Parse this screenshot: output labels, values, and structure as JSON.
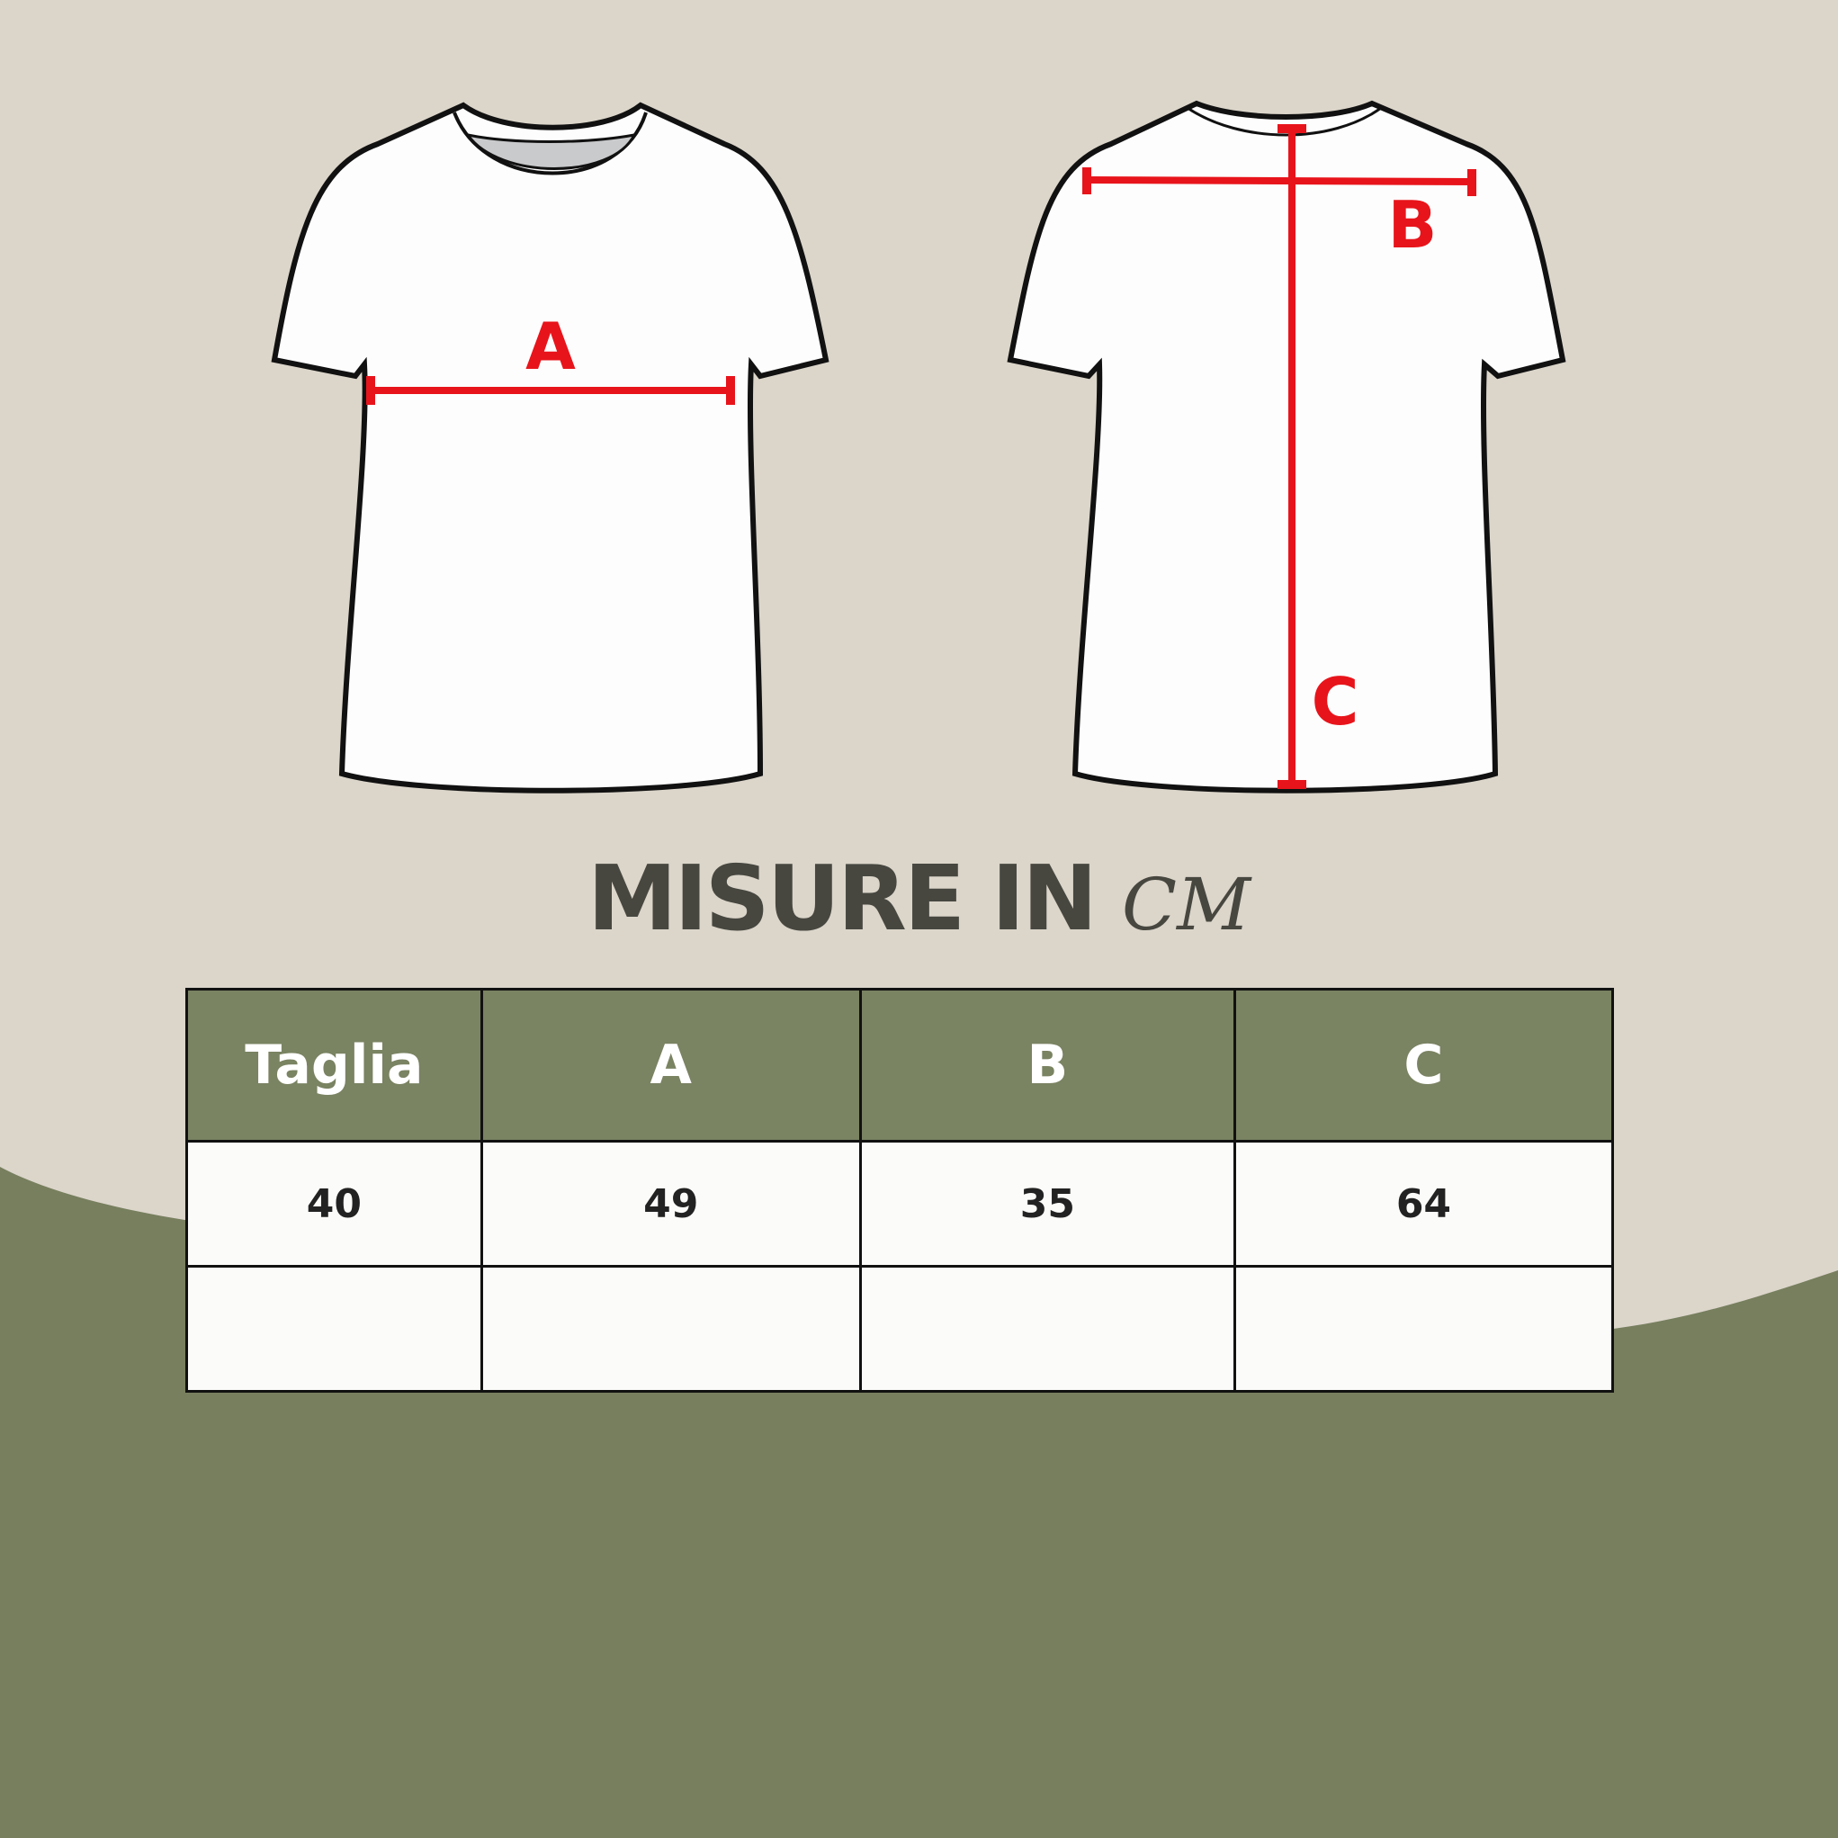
{
  "colors": {
    "background_top": "#dbd5ca",
    "background_bottom": "#777f5e",
    "header_fill": "#7a8362",
    "measure_line": "#e8141b",
    "title_text": "#474740"
  },
  "diagram": {
    "front_label": "A",
    "back_labels": [
      "B",
      "C"
    ]
  },
  "title": {
    "main": "MISURE IN",
    "unit": "CM"
  },
  "table": {
    "headers": [
      "Taglia",
      "A",
      "B",
      "C"
    ],
    "rows": [
      [
        "40",
        "49",
        "35",
        "64"
      ],
      [
        "",
        "",
        "",
        ""
      ]
    ]
  }
}
